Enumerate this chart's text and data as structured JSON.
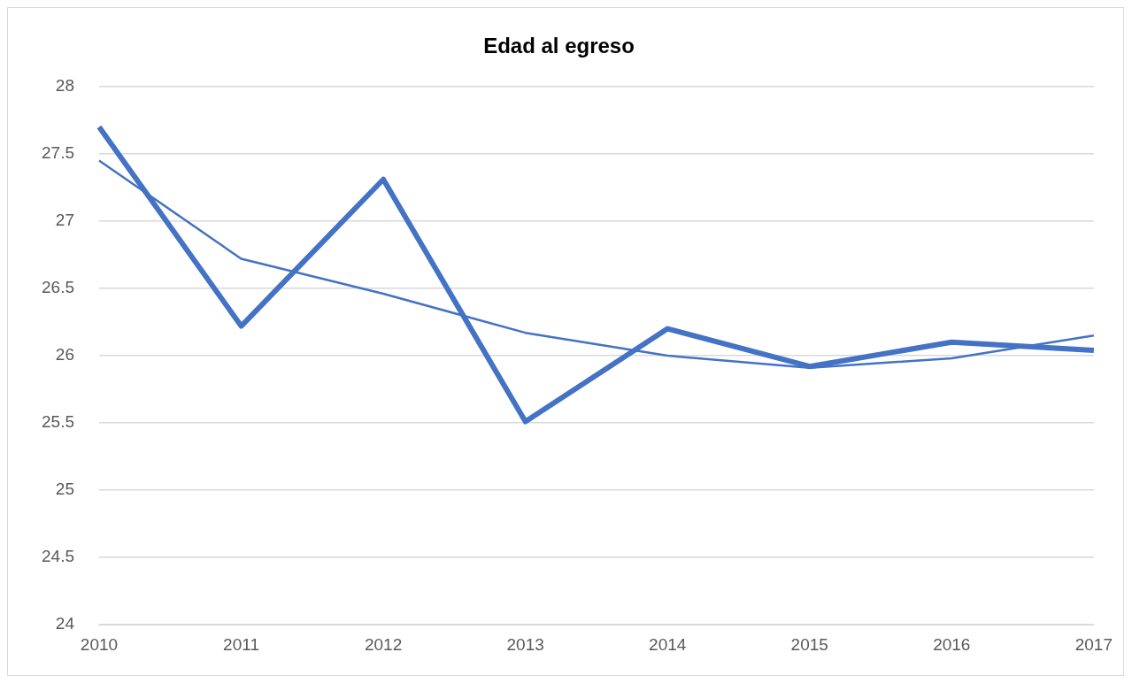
{
  "chart_data": {
    "type": "line",
    "title": "Edad al egreso",
    "categories": [
      "2010",
      "2011",
      "2012",
      "2013",
      "2014",
      "2015",
      "2016",
      "2017"
    ],
    "series": [
      {
        "color": "#4472c4",
        "values": [
          27.7,
          26.22,
          27.31,
          25.51,
          26.2,
          25.92,
          26.1,
          26.04
        ]
      },
      {
        "type": "line",
        "line_style": "solid",
        "color": "#4472c4",
        "values": [
          27.45,
          26.72,
          26.46,
          26.17,
          26.0,
          25.91,
          25.98,
          26.15
        ]
      }
    ],
    "ylim": [
      24,
      28
    ],
    "yticks": [
      24,
      24.5,
      25,
      25.5,
      26,
      26.5,
      27,
      27.5,
      28
    ],
    "grid": "y",
    "legend": false,
    "marker": "none"
  }
}
